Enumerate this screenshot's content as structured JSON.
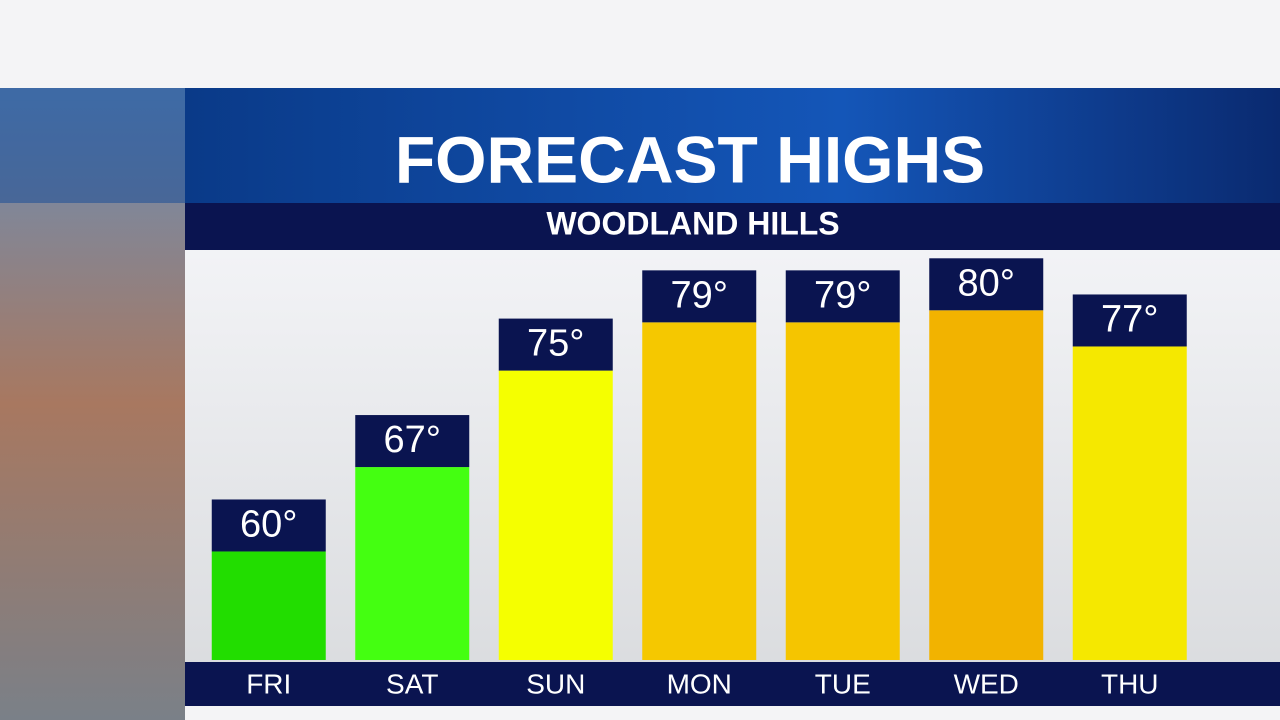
{
  "chart_data": {
    "type": "bar",
    "title": "FORECAST HIGHS",
    "subtitle": "WOODLAND HILLS",
    "categories": [
      "FRI",
      "SAT",
      "SUN",
      "MON",
      "TUE",
      "WED",
      "THU"
    ],
    "values": [
      60,
      67,
      75,
      79,
      79,
      80,
      77
    ],
    "value_labels": [
      "60°",
      "67°",
      "75°",
      "79°",
      "79°",
      "80°",
      "77°"
    ],
    "colors": [
      "#22dd00",
      "#44ff11",
      "#f5ff00",
      "#f5c800",
      "#f5c500",
      "#f2b300",
      "#f5e800"
    ],
    "ylim": [
      51,
      85
    ]
  }
}
